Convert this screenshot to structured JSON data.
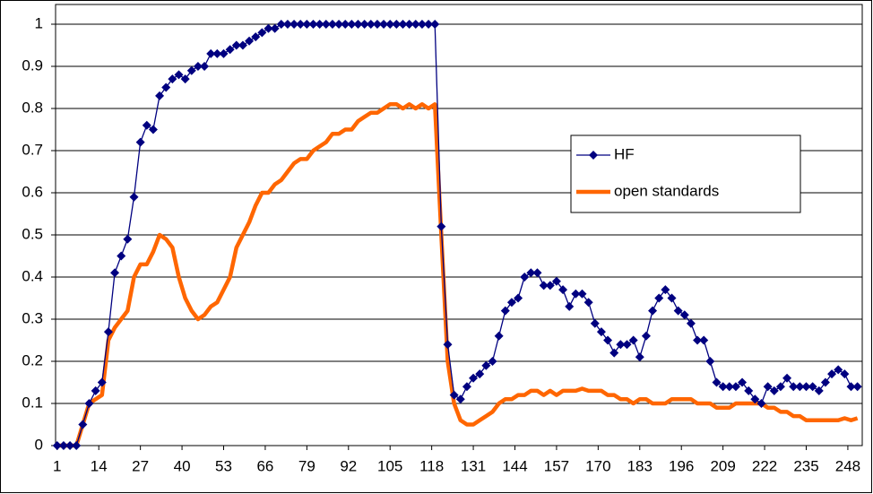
{
  "chart_data": {
    "type": "line",
    "x": [
      1,
      3,
      5,
      7,
      9,
      11,
      13,
      15,
      17,
      19,
      21,
      23,
      25,
      27,
      29,
      31,
      33,
      35,
      37,
      39,
      41,
      43,
      45,
      47,
      49,
      51,
      53,
      55,
      57,
      59,
      61,
      63,
      65,
      67,
      69,
      71,
      73,
      75,
      77,
      79,
      81,
      83,
      85,
      87,
      89,
      91,
      93,
      95,
      97,
      99,
      101,
      103,
      105,
      107,
      109,
      111,
      113,
      115,
      117,
      119,
      121,
      123,
      125,
      127,
      129,
      131,
      133,
      135,
      137,
      139,
      141,
      143,
      145,
      147,
      149,
      151,
      153,
      155,
      157,
      159,
      161,
      163,
      165,
      167,
      169,
      171,
      173,
      175,
      177,
      179,
      181,
      183,
      185,
      187,
      189,
      191,
      193,
      195,
      197,
      199,
      201,
      203,
      205,
      207,
      209,
      211,
      213,
      215,
      217,
      219,
      221,
      223,
      225,
      227,
      229,
      231,
      233,
      235,
      237,
      239,
      241,
      243,
      245,
      247,
      249,
      251
    ],
    "series": [
      {
        "name": "HF",
        "color": "#000080",
        "marker": "diamond",
        "values": [
          0,
          0,
          0,
          0,
          0.05,
          0.1,
          0.13,
          0.15,
          0.27,
          0.41,
          0.45,
          0.49,
          0.59,
          0.72,
          0.76,
          0.75,
          0.83,
          0.85,
          0.87,
          0.88,
          0.87,
          0.89,
          0.9,
          0.9,
          0.93,
          0.93,
          0.93,
          0.94,
          0.95,
          0.95,
          0.96,
          0.97,
          0.98,
          0.99,
          0.99,
          1,
          1,
          1,
          1,
          1,
          1,
          1,
          1,
          1,
          1,
          1,
          1,
          1,
          1,
          1,
          1,
          1,
          1,
          1,
          1,
          1,
          1,
          1,
          1,
          1,
          0.52,
          0.24,
          0.12,
          0.11,
          0.14,
          0.16,
          0.17,
          0.19,
          0.2,
          0.26,
          0.32,
          0.34,
          0.35,
          0.4,
          0.41,
          0.41,
          0.38,
          0.38,
          0.39,
          0.37,
          0.33,
          0.36,
          0.36,
          0.34,
          0.29,
          0.27,
          0.25,
          0.22,
          0.24,
          0.24,
          0.25,
          0.21,
          0.26,
          0.32,
          0.35,
          0.37,
          0.35,
          0.32,
          0.31,
          0.29,
          0.25,
          0.25,
          0.2,
          0.15,
          0.14,
          0.14,
          0.14,
          0.15,
          0.13,
          0.11,
          0.1,
          0.14,
          0.13,
          0.14,
          0.16,
          0.14,
          0.14,
          0.14,
          0.14,
          0.13,
          0.15,
          0.17,
          0.18,
          0.17,
          0.14,
          0.14
        ]
      },
      {
        "name": "open standards",
        "color": "#ff6600",
        "values": [
          0,
          0,
          0,
          0,
          0.05,
          0.1,
          0.11,
          0.12,
          0.25,
          0.28,
          0.3,
          0.32,
          0.4,
          0.43,
          0.43,
          0.46,
          0.5,
          0.49,
          0.47,
          0.4,
          0.35,
          0.32,
          0.3,
          0.31,
          0.33,
          0.34,
          0.37,
          0.4,
          0.47,
          0.5,
          0.53,
          0.57,
          0.6,
          0.6,
          0.62,
          0.63,
          0.65,
          0.67,
          0.68,
          0.68,
          0.7,
          0.71,
          0.72,
          0.74,
          0.74,
          0.75,
          0.75,
          0.77,
          0.78,
          0.79,
          0.79,
          0.8,
          0.81,
          0.81,
          0.8,
          0.81,
          0.8,
          0.81,
          0.8,
          0.81,
          0.5,
          0.2,
          0.1,
          0.06,
          0.05,
          0.05,
          0.06,
          0.07,
          0.08,
          0.1,
          0.11,
          0.11,
          0.12,
          0.12,
          0.13,
          0.13,
          0.12,
          0.13,
          0.12,
          0.13,
          0.13,
          0.13,
          0.135,
          0.13,
          0.13,
          0.13,
          0.12,
          0.12,
          0.11,
          0.11,
          0.1,
          0.11,
          0.11,
          0.1,
          0.1,
          0.1,
          0.11,
          0.11,
          0.11,
          0.11,
          0.1,
          0.1,
          0.1,
          0.09,
          0.09,
          0.09,
          0.1,
          0.1,
          0.1,
          0.1,
          0.1,
          0.09,
          0.09,
          0.08,
          0.08,
          0.07,
          0.07,
          0.06,
          0.06,
          0.06,
          0.06,
          0.06,
          0.06,
          0.065,
          0.06,
          0.065
        ]
      }
    ],
    "xlim": [
      0.5,
      252.5
    ],
    "xticks": [
      1,
      14,
      27,
      40,
      53,
      66,
      79,
      92,
      105,
      118,
      131,
      144,
      157,
      170,
      183,
      196,
      209,
      222,
      235,
      248
    ],
    "ylim": [
      0,
      1
    ],
    "yticks": [
      0,
      0.1,
      0.2,
      0.3,
      0.4,
      0.5,
      0.6,
      0.7,
      0.8,
      0.9,
      1
    ],
    "grid": true,
    "legend": "right"
  }
}
